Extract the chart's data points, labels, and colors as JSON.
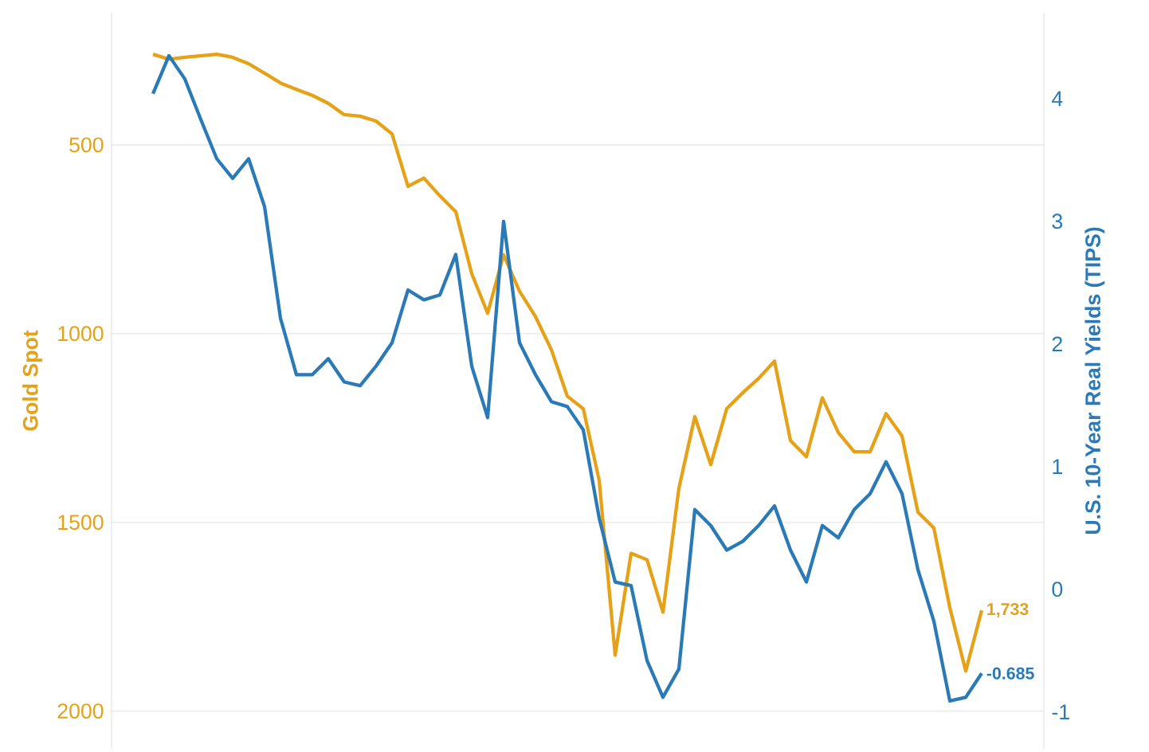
{
  "chart_data": {
    "type": "line",
    "ylabel": "Gold Spot",
    "y2label": "U.S. 10-Year Real Yields (TIPS)",
    "categories": [
      null,
      null,
      null,
      null,
      null,
      null,
      null,
      null,
      null,
      null,
      null,
      null,
      null,
      null,
      null,
      null,
      null,
      null,
      null,
      null,
      null,
      null,
      null,
      null,
      null,
      null,
      null,
      null,
      null,
      null,
      null,
      null,
      null,
      null,
      null,
      null,
      null,
      null,
      null,
      null,
      null,
      null,
      null,
      null,
      null,
      null,
      null,
      null,
      null,
      null,
      null,
      null,
      null
    ],
    "series": [
      {
        "color": "#e6a117",
        "values": [
          260,
          273,
          268,
          264,
          260,
          268,
          285,
          310,
          336,
          353,
          369,
          390,
          420,
          424,
          437,
          471,
          610,
          588,
          635,
          677,
          841,
          946,
          791,
          888,
          955,
          1043,
          1166,
          1199,
          1389,
          1852,
          1582,
          1599,
          1738,
          1410,
          1220,
          1347,
          1199,
          1157,
          1119,
          1073,
          1283,
          1326,
          1170,
          1262,
          1313,
          1313,
          1212,
          1271,
          1473,
          1515,
          1726,
          1894,
          1733
        ],
        "value_labels": [
          null,
          null,
          null,
          null,
          null,
          null,
          null,
          null,
          null,
          null,
          null,
          null,
          null,
          null,
          null,
          null,
          null,
          null,
          null,
          null,
          null,
          null,
          null,
          null,
          null,
          null,
          null,
          null,
          null,
          null,
          null,
          null,
          null,
          null,
          null,
          null,
          null,
          null,
          null,
          null,
          null,
          null,
          null,
          null,
          null,
          null,
          null,
          null,
          null,
          null,
          null,
          null,
          "1,733"
        ]
      },
      {
        "color": "#2a7ab8",
        "axis": "y2",
        "values": [
          4.04,
          4.35,
          4.16,
          3.83,
          3.51,
          3.35,
          3.51,
          3.12,
          2.21,
          1.75,
          1.75,
          1.88,
          1.69,
          1.66,
          1.82,
          2.01,
          2.44,
          2.36,
          2.4,
          2.73,
          1.82,
          1.4,
          3.0,
          2.01,
          1.75,
          1.53,
          1.49,
          1.3,
          0.58,
          0.06,
          0.03,
          -0.58,
          -0.88,
          -0.65,
          0.65,
          0.52,
          0.32,
          0.39,
          0.52,
          0.68,
          0.32,
          0.06,
          0.52,
          0.42,
          0.65,
          0.78,
          1.04,
          0.78,
          0.16,
          -0.26,
          -0.91,
          -0.88,
          -0.685
        ],
        "value_labels": [
          null,
          null,
          null,
          null,
          null,
          null,
          null,
          null,
          null,
          null,
          null,
          null,
          null,
          null,
          null,
          null,
          null,
          null,
          null,
          null,
          null,
          null,
          null,
          null,
          null,
          null,
          null,
          null,
          null,
          null,
          null,
          null,
          null,
          null,
          null,
          null,
          null,
          null,
          null,
          null,
          null,
          null,
          null,
          null,
          null,
          null,
          null,
          null,
          null,
          null,
          null,
          null,
          "-0.685"
        ]
      }
    ],
    "ylim": [
      2100,
      150
    ],
    "yticks": [
      500,
      1000,
      1500,
      2000
    ],
    "y2lim": [
      -1.3,
      4.7
    ],
    "y2ticks": [
      -1,
      0,
      1,
      2,
      3,
      4
    ],
    "grid": "y",
    "marker": "none",
    "line_style": "solid"
  }
}
